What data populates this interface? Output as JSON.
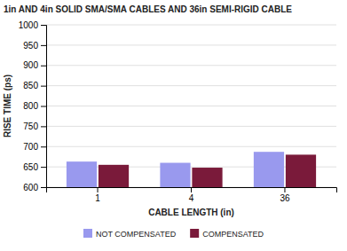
{
  "chart_data": {
    "type": "bar",
    "title": "1in AND 4in SOLID SMA/SMA CABLES AND 36in SEMI-RIGID CABLE",
    "x_label": "CABLE LENGTH (in)",
    "y_label": "RISE TIME (ps)",
    "categories": [
      "1",
      "4",
      "36"
    ],
    "series": [
      {
        "name": "NOT COMPENSATED",
        "color": "#9999ee",
        "values": [
          663,
          660,
          687
        ]
      },
      {
        "name": "COMPENSATED",
        "color": "#7a1a3a",
        "values": [
          655,
          648,
          680
        ]
      }
    ],
    "ylim": [
      600,
      1000
    ],
    "yticks": [
      600,
      650,
      700,
      750,
      800,
      850,
      900,
      950,
      1000
    ],
    "grid": true,
    "legend": "bottom"
  }
}
